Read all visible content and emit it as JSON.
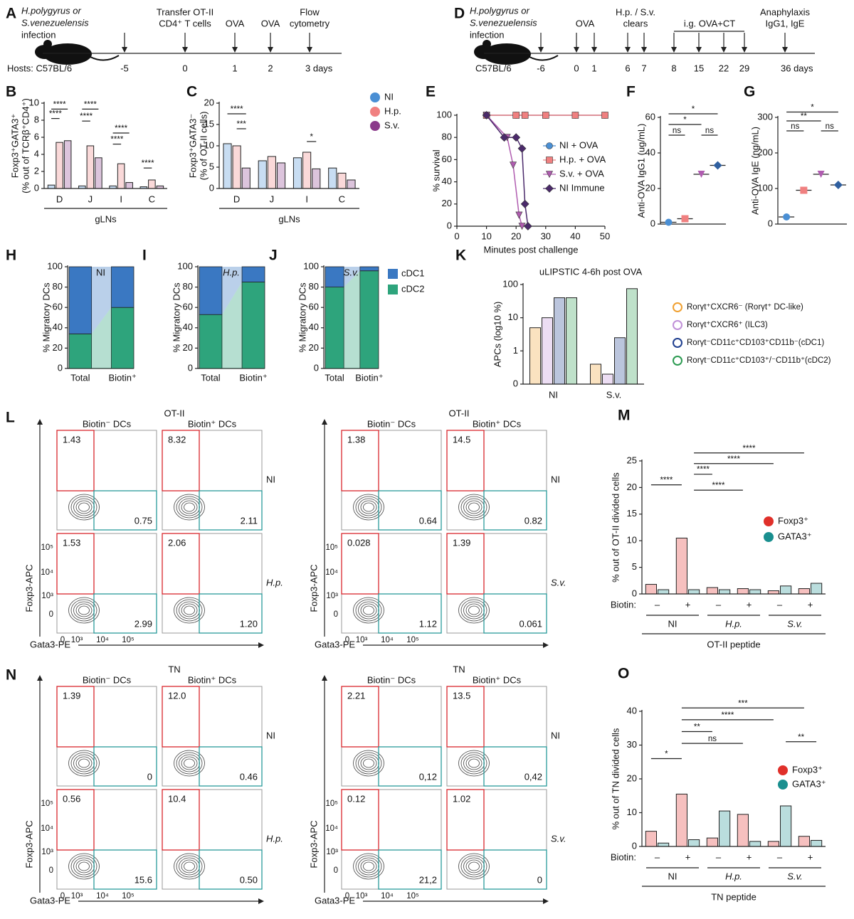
{
  "timelines": [
    {
      "panel": "A",
      "groups": [
        {
          "lines": [
            "H.polygyrus or",
            "S.venezuelensis",
            "infection"
          ]
        },
        {
          "lines": [
            "Transfer OT-II",
            "CD4⁺ T cells"
          ]
        },
        {
          "lines": [
            "OVA"
          ]
        },
        {
          "lines": [
            "OVA"
          ]
        },
        {
          "lines": [
            "Flow",
            "cytometry"
          ]
        }
      ],
      "days": [
        "-5",
        "0",
        "1",
        "2",
        "3 days"
      ],
      "host": "Hosts: C57BL/6"
    },
    {
      "panel": "D",
      "groups": [
        {
          "lines": [
            "H.polygyrus or",
            "S.venezuelensis",
            "infection"
          ]
        },
        {
          "lines": [
            "OVA"
          ]
        },
        {
          "lines": [
            "H.p. / S.v.",
            "clears"
          ]
        },
        {
          "lines": [
            "i.g. OVA+CT"
          ]
        },
        {
          "lines": [
            "Anaphylaxis",
            "IgG1, IgE"
          ]
        }
      ],
      "days": [
        "-6",
        "0",
        "1",
        "6",
        "7",
        "8",
        "15",
        "22",
        "29",
        "36 days"
      ],
      "host": "C57BL/6"
    }
  ],
  "chart_data": [
    {
      "panel": "B",
      "type": "bar",
      "y_label": [
        "Foxp3⁺GATA3⁺",
        "(% out of TCRβ⁺CD4⁺)"
      ],
      "x_label": "gLNs",
      "categories": [
        "D",
        "J",
        "I",
        "C"
      ],
      "series": [
        {
          "name": "NI",
          "color": "#4a8fd4",
          "values": [
            0.4,
            0.3,
            0.3,
            0.2
          ]
        },
        {
          "name": "H.p.",
          "color": "#f08080",
          "values": [
            5.4,
            5.0,
            2.9,
            1.0
          ]
        },
        {
          "name": "S.v.",
          "color": "#8b3a8b",
          "values": [
            5.6,
            3.6,
            0.7,
            0.3
          ]
        }
      ],
      "ylim": [
        0,
        10
      ],
      "yticks": [
        0,
        2,
        4,
        6,
        8,
        10
      ],
      "annotations": [
        "****",
        "****",
        "****",
        "****",
        "****",
        "****",
        "****"
      ],
      "legend": false
    },
    {
      "panel": "C",
      "type": "bar",
      "y_label": [
        "Foxp3⁺GATA3⁻",
        "(% of OT-II cells)"
      ],
      "x_label": "gLNs",
      "categories": [
        "D",
        "J",
        "I",
        "C"
      ],
      "series": [
        {
          "name": "NI",
          "color": "#4a8fd4",
          "values": [
            10.5,
            6.5,
            7.2,
            4.8
          ]
        },
        {
          "name": "H.p.",
          "color": "#f08080",
          "values": [
            10.0,
            7.5,
            8.5,
            3.6
          ]
        },
        {
          "name": "S.v.",
          "color": "#8b3a8b",
          "values": [
            4.8,
            6.0,
            4.6,
            2.0
          ]
        }
      ],
      "ylim": [
        0,
        20
      ],
      "yticks": [
        0,
        5,
        10,
        15,
        20
      ],
      "annotations": [
        "****",
        "***",
        "*"
      ],
      "legend": true
    },
    {
      "panel": "E",
      "type": "line",
      "y_label": [
        "% survival"
      ],
      "x_label": "Minutes post challenge",
      "xlim": [
        0,
        50
      ],
      "xticks": [
        0,
        10,
        20,
        30,
        40,
        50
      ],
      "ylim": [
        0,
        100
      ],
      "yticks": [
        0,
        20,
        40,
        60,
        80,
        100
      ],
      "series": [
        {
          "name": "NI + OVA",
          "color": "#4a8fd4",
          "marker": "circle",
          "x": [
            10,
            20,
            23,
            30,
            40,
            50
          ],
          "values": [
            100,
            100,
            100,
            100,
            100,
            100
          ]
        },
        {
          "name": "H.p. + OVA",
          "color": "#f08080",
          "marker": "square",
          "x": [
            10,
            20,
            23,
            30,
            40,
            50
          ],
          "values": [
            100,
            100,
            100,
            100,
            100,
            100
          ]
        },
        {
          "name": "S.v. + OVA",
          "color": "#b05cb0",
          "marker": "triangle",
          "x": [
            10,
            17,
            19,
            21,
            22
          ],
          "values": [
            100,
            80,
            55,
            10,
            0
          ]
        },
        {
          "name": "NI Immune",
          "color": "#4b2a6b",
          "marker": "diamond",
          "x": [
            10,
            16,
            20,
            22,
            23,
            24
          ],
          "values": [
            100,
            80,
            80,
            70,
            20,
            0
          ]
        }
      ],
      "legend": true
    },
    {
      "panel": "F",
      "type": "dot",
      "y_label": [
        "Anti-OVA IgG1 (ug/mL)"
      ],
      "categories": [
        null,
        null,
        null,
        null
      ],
      "values": [
        1,
        3,
        28,
        33
      ],
      "colors": [
        "#4a8fd4",
        "#f08080",
        "#b05cb0",
        "#2f5f9f"
      ],
      "markers": [
        "circle",
        "square",
        "triangle",
        "diamond"
      ],
      "ylim": [
        0,
        60
      ],
      "yticks": [
        0,
        20,
        40,
        60
      ],
      "annotations": [
        "*",
        "*",
        "ns",
        "ns"
      ]
    },
    {
      "panel": "G",
      "type": "dot",
      "y_label": [
        "Anti-OVA IgE (ng/mL)"
      ],
      "categories": [
        null,
        null,
        null,
        null
      ],
      "values": [
        20,
        95,
        140,
        110
      ],
      "colors": [
        "#4a8fd4",
        "#f08080",
        "#b05cb0",
        "#2f5f9f"
      ],
      "markers": [
        "circle",
        "square",
        "triangle",
        "diamond"
      ],
      "ylim": [
        0,
        300
      ],
      "yticks": [
        0,
        100,
        200,
        300
      ],
      "annotations": [
        "*",
        "**",
        "ns",
        "ns"
      ]
    },
    {
      "panel": "H",
      "type": "stacked_bar",
      "title": "NI",
      "y_label": [
        "% Migratory DCs"
      ],
      "categories": [
        "Total",
        "Biotin⁺"
      ],
      "series": [
        {
          "name": "cDC1",
          "color": "#3a78c2",
          "values": [
            66,
            40
          ]
        },
        {
          "name": "cDC2",
          "color": "#2ea47c",
          "values": [
            34,
            60
          ]
        }
      ],
      "ylim": [
        0,
        100
      ],
      "yticks": [
        0,
        20,
        40,
        60,
        80,
        100
      ],
      "legend": false
    },
    {
      "panel": "I",
      "type": "stacked_bar",
      "title": "H.p.",
      "y_label": [
        "% Migratory DCs"
      ],
      "categories": [
        "Total",
        "Biotin⁺"
      ],
      "series": [
        {
          "name": "cDC1",
          "color": "#3a78c2",
          "values": [
            47,
            15
          ]
        },
        {
          "name": "cDC2",
          "color": "#2ea47c",
          "values": [
            53,
            85
          ]
        }
      ],
      "ylim": [
        0,
        100
      ],
      "yticks": [
        0,
        20,
        40,
        60,
        80,
        100
      ],
      "legend": false
    },
    {
      "panel": "J",
      "type": "stacked_bar",
      "title": "S.v.",
      "y_label": [
        "% Migratory DCs"
      ],
      "categories": [
        "Total",
        "Biotin⁺"
      ],
      "series": [
        {
          "name": "cDC1",
          "color": "#3a78c2",
          "values": [
            20,
            4
          ]
        },
        {
          "name": "cDC2",
          "color": "#2ea47c",
          "values": [
            80,
            96
          ]
        }
      ],
      "ylim": [
        0,
        100
      ],
      "yticks": [
        0,
        20,
        40,
        60,
        80,
        100
      ],
      "legend": true
    },
    {
      "panel": "K",
      "type": "bar",
      "title": "uLIPSTIC 4-6h post OVA",
      "y_label": [
        "APCs (log10 %)"
      ],
      "log_y": true,
      "categories": [
        "NI",
        "S.v."
      ],
      "series": [
        {
          "name": "Rorγt⁺CXCR6⁻ (Rorγt⁺ DC-like)",
          "color": "#f0a030",
          "values": [
            5,
            0.6
          ]
        },
        {
          "name": "Rorγt⁺CXCR6⁺ (ILC3)",
          "color": "#c090d8",
          "values": [
            10,
            0.3
          ]
        },
        {
          "name": "Rorγt⁻CD11c⁺CD103⁺CD11b⁻(cDC1)",
          "color": "#1f3f8f",
          "values": [
            40,
            2.5
          ]
        },
        {
          "name": "Rorγt⁻CD11c⁺CD103⁺/⁻CD11b⁺(cDC2)",
          "color": "#2a9a50",
          "values": [
            40,
            75
          ]
        }
      ],
      "ylim": [
        0,
        100
      ],
      "yticks": [
        0,
        1,
        10,
        100
      ],
      "legend": true
    },
    {
      "panel": "M",
      "type": "bar",
      "y_label": [
        "% out of OT-II divided cells"
      ],
      "x_label": "OT-II peptide",
      "categories": [
        "–",
        "+",
        "–",
        "+",
        "–",
        "+"
      ],
      "groups": [
        "NI",
        "H.p.",
        "S.v."
      ],
      "biotin_label": "Biotin:",
      "series": [
        {
          "name": "Foxp3⁺",
          "color": "#e0302a",
          "values": [
            1.8,
            10.5,
            1.2,
            1.0,
            0.6,
            1.0
          ]
        },
        {
          "name": "GATA3⁺",
          "color": "#1a8f8f",
          "values": [
            0.8,
            0.8,
            0.8,
            0.8,
            1.5,
            2.0
          ]
        }
      ],
      "ylim": [
        0,
        25
      ],
      "yticks": [
        0,
        5,
        10,
        15,
        20,
        25
      ],
      "annotations": [
        "****",
        "****",
        "****",
        "****",
        "****"
      ],
      "legend": true
    },
    {
      "panel": "O",
      "type": "bar",
      "y_label": [
        "% out of TN divided cells"
      ],
      "x_label": "TN peptide",
      "categories": [
        "–",
        "+",
        "–",
        "+",
        "–",
        "+"
      ],
      "groups": [
        "NI",
        "H.p.",
        "S.v."
      ],
      "biotin_label": "Biotin:",
      "series": [
        {
          "name": "Foxp3⁺",
          "color": "#e0302a",
          "values": [
            4.5,
            15.5,
            2.5,
            9.5,
            1.5,
            3.0
          ]
        },
        {
          "name": "GATA3⁺",
          "color": "#1a8f8f",
          "values": [
            1.0,
            2.0,
            10.5,
            1.5,
            12.0,
            1.8
          ]
        }
      ],
      "ylim": [
        0,
        40
      ],
      "yticks": [
        0,
        10,
        20,
        30,
        40
      ],
      "annotations": [
        "*",
        "**",
        "ns",
        "****",
        "***",
        "**"
      ],
      "legend": true
    }
  ],
  "flow": [
    {
      "panel": "L",
      "title": "OT-II",
      "y_axis": "Foxp3-APC",
      "x_axis": "Gata3-PE",
      "yticks": [
        "10⁵",
        "10⁴",
        "10³",
        "0"
      ],
      "xticks": [
        "0",
        "10³",
        "10⁴",
        "10⁵"
      ],
      "blocks": [
        {
          "columns": [
            "Biotin⁻ DCs",
            "Biotin⁺ DCs"
          ],
          "rows": [
            {
              "name": "NI",
              "cells": [
                [
                  "1.43",
                  "0.75"
                ],
                [
                  "8.32",
                  "2.11"
                ]
              ]
            },
            {
              "name": "H.p.",
              "cells": [
                [
                  "1.53",
                  "2.99"
                ],
                [
                  "2.06",
                  "1.20"
                ]
              ]
            }
          ]
        },
        {
          "columns": [
            "Biotin⁻ DCs",
            "Biotin⁺ DCs"
          ],
          "rows": [
            {
              "name": "NI",
              "cells": [
                [
                  "1.38",
                  "0.64"
                ],
                [
                  "14.5",
                  "0.82"
                ]
              ]
            },
            {
              "name": "S.v.",
              "cells": [
                [
                  "0.028",
                  "1.12"
                ],
                [
                  "1.39",
                  "0.061"
                ]
              ]
            }
          ]
        }
      ]
    },
    {
      "panel": "N",
      "title": "TN",
      "y_axis": "Foxp3-APC",
      "x_axis": "Gata3-PE",
      "yticks": [
        "10⁵",
        "10⁴",
        "10³",
        "0"
      ],
      "xticks": [
        "0",
        "10³",
        "10⁴",
        "10⁵"
      ],
      "blocks": [
        {
          "columns": [
            "Biotin⁻ DCs",
            "Biotin⁺ DCs"
          ],
          "rows": [
            {
              "name": "NI",
              "cells": [
                [
                  "1.39",
                  "0"
                ],
                [
                  "12.0",
                  "0.46"
                ]
              ]
            },
            {
              "name": "H.p.",
              "cells": [
                [
                  "0.56",
                  "15.6"
                ],
                [
                  "10.4",
                  "0.50"
                ]
              ]
            }
          ]
        },
        {
          "columns": [
            "Biotin⁻ DCs",
            "Biotin⁺ DCs"
          ],
          "rows": [
            {
              "name": "NI",
              "cells": [
                [
                  "2.21",
                  "0,12"
                ],
                [
                  "13.5",
                  "0,42"
                ]
              ]
            },
            {
              "name": "S.v.",
              "cells": [
                [
                  "0.12",
                  "21,2"
                ],
                [
                  "1.02",
                  "0"
                ]
              ]
            }
          ]
        }
      ]
    }
  ]
}
